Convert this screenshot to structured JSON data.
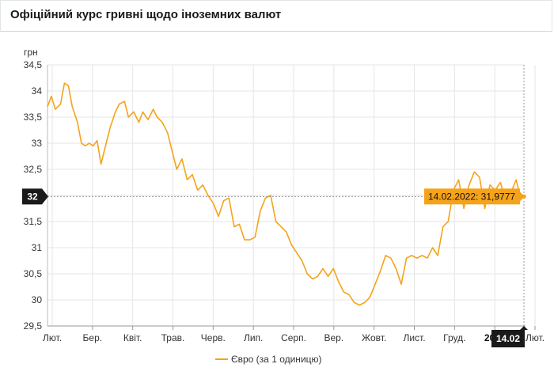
{
  "header": {
    "title": "Офіційний курс гривні щодо іноземних валют"
  },
  "colors": {
    "line": "#f5a31a",
    "crosshair_bg": "#1a1a1a",
    "tooltip_bg": "#f5a31a",
    "grid": "#e6e6e6"
  },
  "chart_data": {
    "type": "line",
    "ylabel": "грн",
    "ylim": [
      29.5,
      34.5
    ],
    "yticks": [
      "34,5",
      "34",
      "33,5",
      "33",
      "32,5",
      "32",
      "31,5",
      "31",
      "30,5",
      "30",
      "29,5"
    ],
    "yticks_values": [
      34.5,
      34,
      33.5,
      33,
      32.5,
      32,
      31.5,
      31,
      30.5,
      30,
      29.5
    ],
    "xticks": [
      "Лют.",
      "Бер.",
      "Квіт.",
      "Трав.",
      "Черв.",
      "Лип.",
      "Серп.",
      "Вер.",
      "Жовт.",
      "Лист.",
      "Груд.",
      "2022",
      "Лют."
    ],
    "xlim": [
      "2021-02-14",
      "2022-02-14"
    ],
    "grid": true,
    "legend_position": "bottom-center",
    "crosshair": {
      "y_label": "32",
      "x_label": "14.02",
      "tooltip": "14.02.2022: 31,9777"
    },
    "series": [
      {
        "name": "Євро (за 1 одиницю)",
        "x": [
          "2021-02-14",
          "2021-02-17",
          "2021-02-20",
          "2021-02-24",
          "2021-02-27",
          "2021-03-02",
          "2021-03-05",
          "2021-03-09",
          "2021-03-12",
          "2021-03-15",
          "2021-03-18",
          "2021-03-21",
          "2021-03-24",
          "2021-03-27",
          "2021-03-31",
          "2021-04-03",
          "2021-04-07",
          "2021-04-10",
          "2021-04-14",
          "2021-04-17",
          "2021-04-21",
          "2021-04-25",
          "2021-04-28",
          "2021-05-02",
          "2021-05-06",
          "2021-05-09",
          "2021-05-13",
          "2021-05-17",
          "2021-05-21",
          "2021-05-24",
          "2021-05-28",
          "2021-06-01",
          "2021-06-05",
          "2021-06-09",
          "2021-06-13",
          "2021-06-17",
          "2021-06-21",
          "2021-06-25",
          "2021-06-29",
          "2021-07-03",
          "2021-07-07",
          "2021-07-11",
          "2021-07-15",
          "2021-07-19",
          "2021-07-23",
          "2021-07-27",
          "2021-07-31",
          "2021-08-04",
          "2021-08-08",
          "2021-08-12",
          "2021-08-16",
          "2021-08-20",
          "2021-08-24",
          "2021-08-28",
          "2021-09-01",
          "2021-09-05",
          "2021-09-09",
          "2021-09-13",
          "2021-09-17",
          "2021-09-21",
          "2021-09-25",
          "2021-09-29",
          "2021-10-03",
          "2021-10-07",
          "2021-10-11",
          "2021-10-15",
          "2021-10-19",
          "2021-10-23",
          "2021-10-27",
          "2021-10-31",
          "2021-11-04",
          "2021-11-08",
          "2021-11-12",
          "2021-11-16",
          "2021-11-20",
          "2021-11-24",
          "2021-11-28",
          "2021-12-02",
          "2021-12-06",
          "2021-12-10",
          "2021-12-14",
          "2021-12-18",
          "2021-12-22",
          "2021-12-26",
          "2021-12-30",
          "2022-01-03",
          "2022-01-07",
          "2022-01-11",
          "2022-01-15",
          "2022-01-19",
          "2022-01-23",
          "2022-01-27",
          "2022-01-31",
          "2022-02-04",
          "2022-02-08",
          "2022-02-11",
          "2022-02-14"
        ],
        "values": [
          33.7,
          33.9,
          33.65,
          33.75,
          34.15,
          34.1,
          33.7,
          33.4,
          33.0,
          32.95,
          33.0,
          32.95,
          33.05,
          32.6,
          33.0,
          33.3,
          33.6,
          33.75,
          33.8,
          33.5,
          33.6,
          33.4,
          33.6,
          33.45,
          33.65,
          33.5,
          33.4,
          33.2,
          32.8,
          32.5,
          32.7,
          32.3,
          32.4,
          32.1,
          32.2,
          32.0,
          31.85,
          31.6,
          31.9,
          31.95,
          31.4,
          31.45,
          31.15,
          31.15,
          31.2,
          31.7,
          31.95,
          32.0,
          31.5,
          31.4,
          31.3,
          31.05,
          30.9,
          30.75,
          30.5,
          30.4,
          30.45,
          30.6,
          30.45,
          30.6,
          30.35,
          30.15,
          30.1,
          29.95,
          29.9,
          29.95,
          30.05,
          30.3,
          30.55,
          30.85,
          30.8,
          30.6,
          30.3,
          30.8,
          30.85,
          30.8,
          30.85,
          30.8,
          31.0,
          30.85,
          31.4,
          31.5,
          32.1,
          32.3,
          31.75,
          32.2,
          32.45,
          32.35,
          31.75,
          32.2,
          32.1,
          32.25,
          31.9,
          32.05,
          32.3,
          32.0,
          31.98
        ]
      }
    ]
  }
}
